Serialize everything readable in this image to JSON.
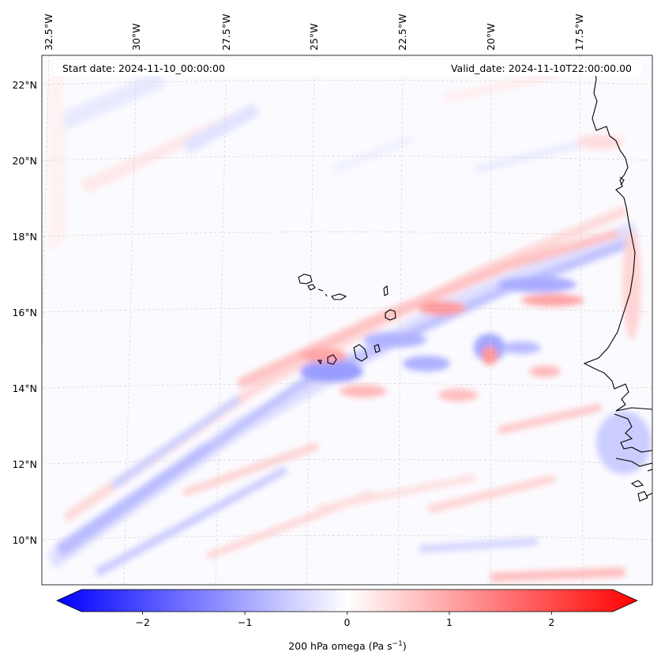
{
  "map": {
    "start_date": "Start date: 2024-11-10_00:00:00",
    "valid_date": "Valid_date: 2024-11-10T22:00:00.00",
    "lon_labels": [
      "32.5°W",
      "30°W",
      "27.5°W",
      "25°W",
      "22.5°W",
      "20°W",
      "17.5°W"
    ],
    "lat_labels": [
      "22°N",
      "20°N",
      "18°N",
      "16°N",
      "14°N",
      "12°N",
      "10°N"
    ],
    "features": [
      "Cabo Verde islands",
      "West African coastline"
    ]
  },
  "colorbar": {
    "label": "200 hPa omega (Pa s",
    "label_sup": "−1",
    "label_end": ")",
    "ticks": [
      "−2",
      "−1",
      "0",
      "1",
      "2"
    ],
    "tick_values": [
      -2,
      -1,
      0,
      1,
      2
    ],
    "range": [
      -2.6,
      2.6
    ],
    "colors": {
      "low": "#0000ff",
      "mid": "#ffffff",
      "high": "#ff0000"
    }
  }
}
